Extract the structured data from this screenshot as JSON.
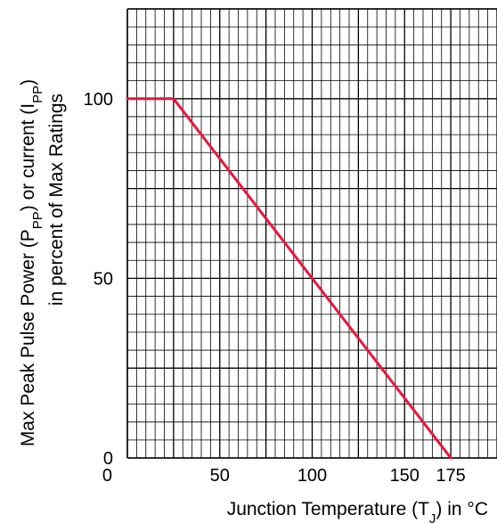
{
  "chart_data": {
    "type": "line",
    "title": "",
    "xlabel": {
      "main": "Junction Temperature (T",
      "sub": "J",
      "tail": ") in °C"
    },
    "ylabel": {
      "line1": {
        "p1": "Max Peak Pulse Power (P",
        "s1": "PP",
        "p2": ") or current (I",
        "s2": "PP",
        "p3": ")"
      },
      "line2": "in percent of Max Ratings"
    },
    "xlim": [
      0,
      200
    ],
    "ylim": [
      0,
      125
    ],
    "x_ticks": [
      {
        "value": 0,
        "label": "0"
      },
      {
        "value": 50,
        "label": "50"
      },
      {
        "value": 100,
        "label": "100"
      },
      {
        "value": 150,
        "label": "150"
      },
      {
        "value": 175,
        "label": "175"
      }
    ],
    "y_ticks": [
      {
        "value": 0,
        "label": "0"
      },
      {
        "value": 50,
        "label": "50"
      },
      {
        "value": 100,
        "label": "100"
      }
    ],
    "grid": true,
    "x_grid_step": 5,
    "y_grid_step": 5,
    "series": [
      {
        "x": [
          0,
          25,
          175
        ],
        "y": [
          100,
          100,
          0
        ],
        "color": "#e5173f"
      }
    ],
    "colors": {
      "grid": "#000000",
      "line": "#e5173f",
      "text": "#000000"
    }
  }
}
